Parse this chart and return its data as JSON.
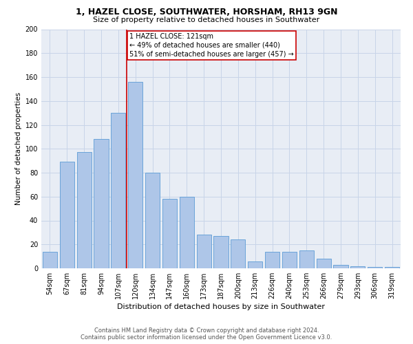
{
  "title_line1": "1, HAZEL CLOSE, SOUTHWATER, HORSHAM, RH13 9GN",
  "title_line2": "Size of property relative to detached houses in Southwater",
  "xlabel": "Distribution of detached houses by size in Southwater",
  "ylabel": "Number of detached properties",
  "categories": [
    "54sqm",
    "67sqm",
    "81sqm",
    "94sqm",
    "107sqm",
    "120sqm",
    "134sqm",
    "147sqm",
    "160sqm",
    "173sqm",
    "187sqm",
    "200sqm",
    "213sqm",
    "226sqm",
    "240sqm",
    "253sqm",
    "266sqm",
    "279sqm",
    "293sqm",
    "306sqm",
    "319sqm"
  ],
  "values": [
    14,
    89,
    97,
    108,
    130,
    156,
    80,
    58,
    60,
    28,
    27,
    24,
    6,
    14,
    14,
    15,
    8,
    3,
    2,
    1,
    1
  ],
  "bar_color": "#aec6e8",
  "bar_edge_color": "#5b9bd5",
  "grid_color": "#c8d4e8",
  "background_color": "#e8edf5",
  "vline_x_index": 5,
  "vline_color": "#cc0000",
  "annotation_text": "1 HAZEL CLOSE: 121sqm\n← 49% of detached houses are smaller (440)\n51% of semi-detached houses are larger (457) →",
  "annotation_box_color": "#cc0000",
  "footer_line1": "Contains HM Land Registry data © Crown copyright and database right 2024.",
  "footer_line2": "Contains public sector information licensed under the Open Government Licence v3.0.",
  "ylim": [
    0,
    200
  ],
  "yticks": [
    0,
    20,
    40,
    60,
    80,
    100,
    120,
    140,
    160,
    180,
    200
  ],
  "title1_fontsize": 9,
  "title2_fontsize": 8,
  "xlabel_fontsize": 8,
  "ylabel_fontsize": 7.5,
  "tick_fontsize": 7,
  "footer_fontsize": 6,
  "annotation_fontsize": 7
}
